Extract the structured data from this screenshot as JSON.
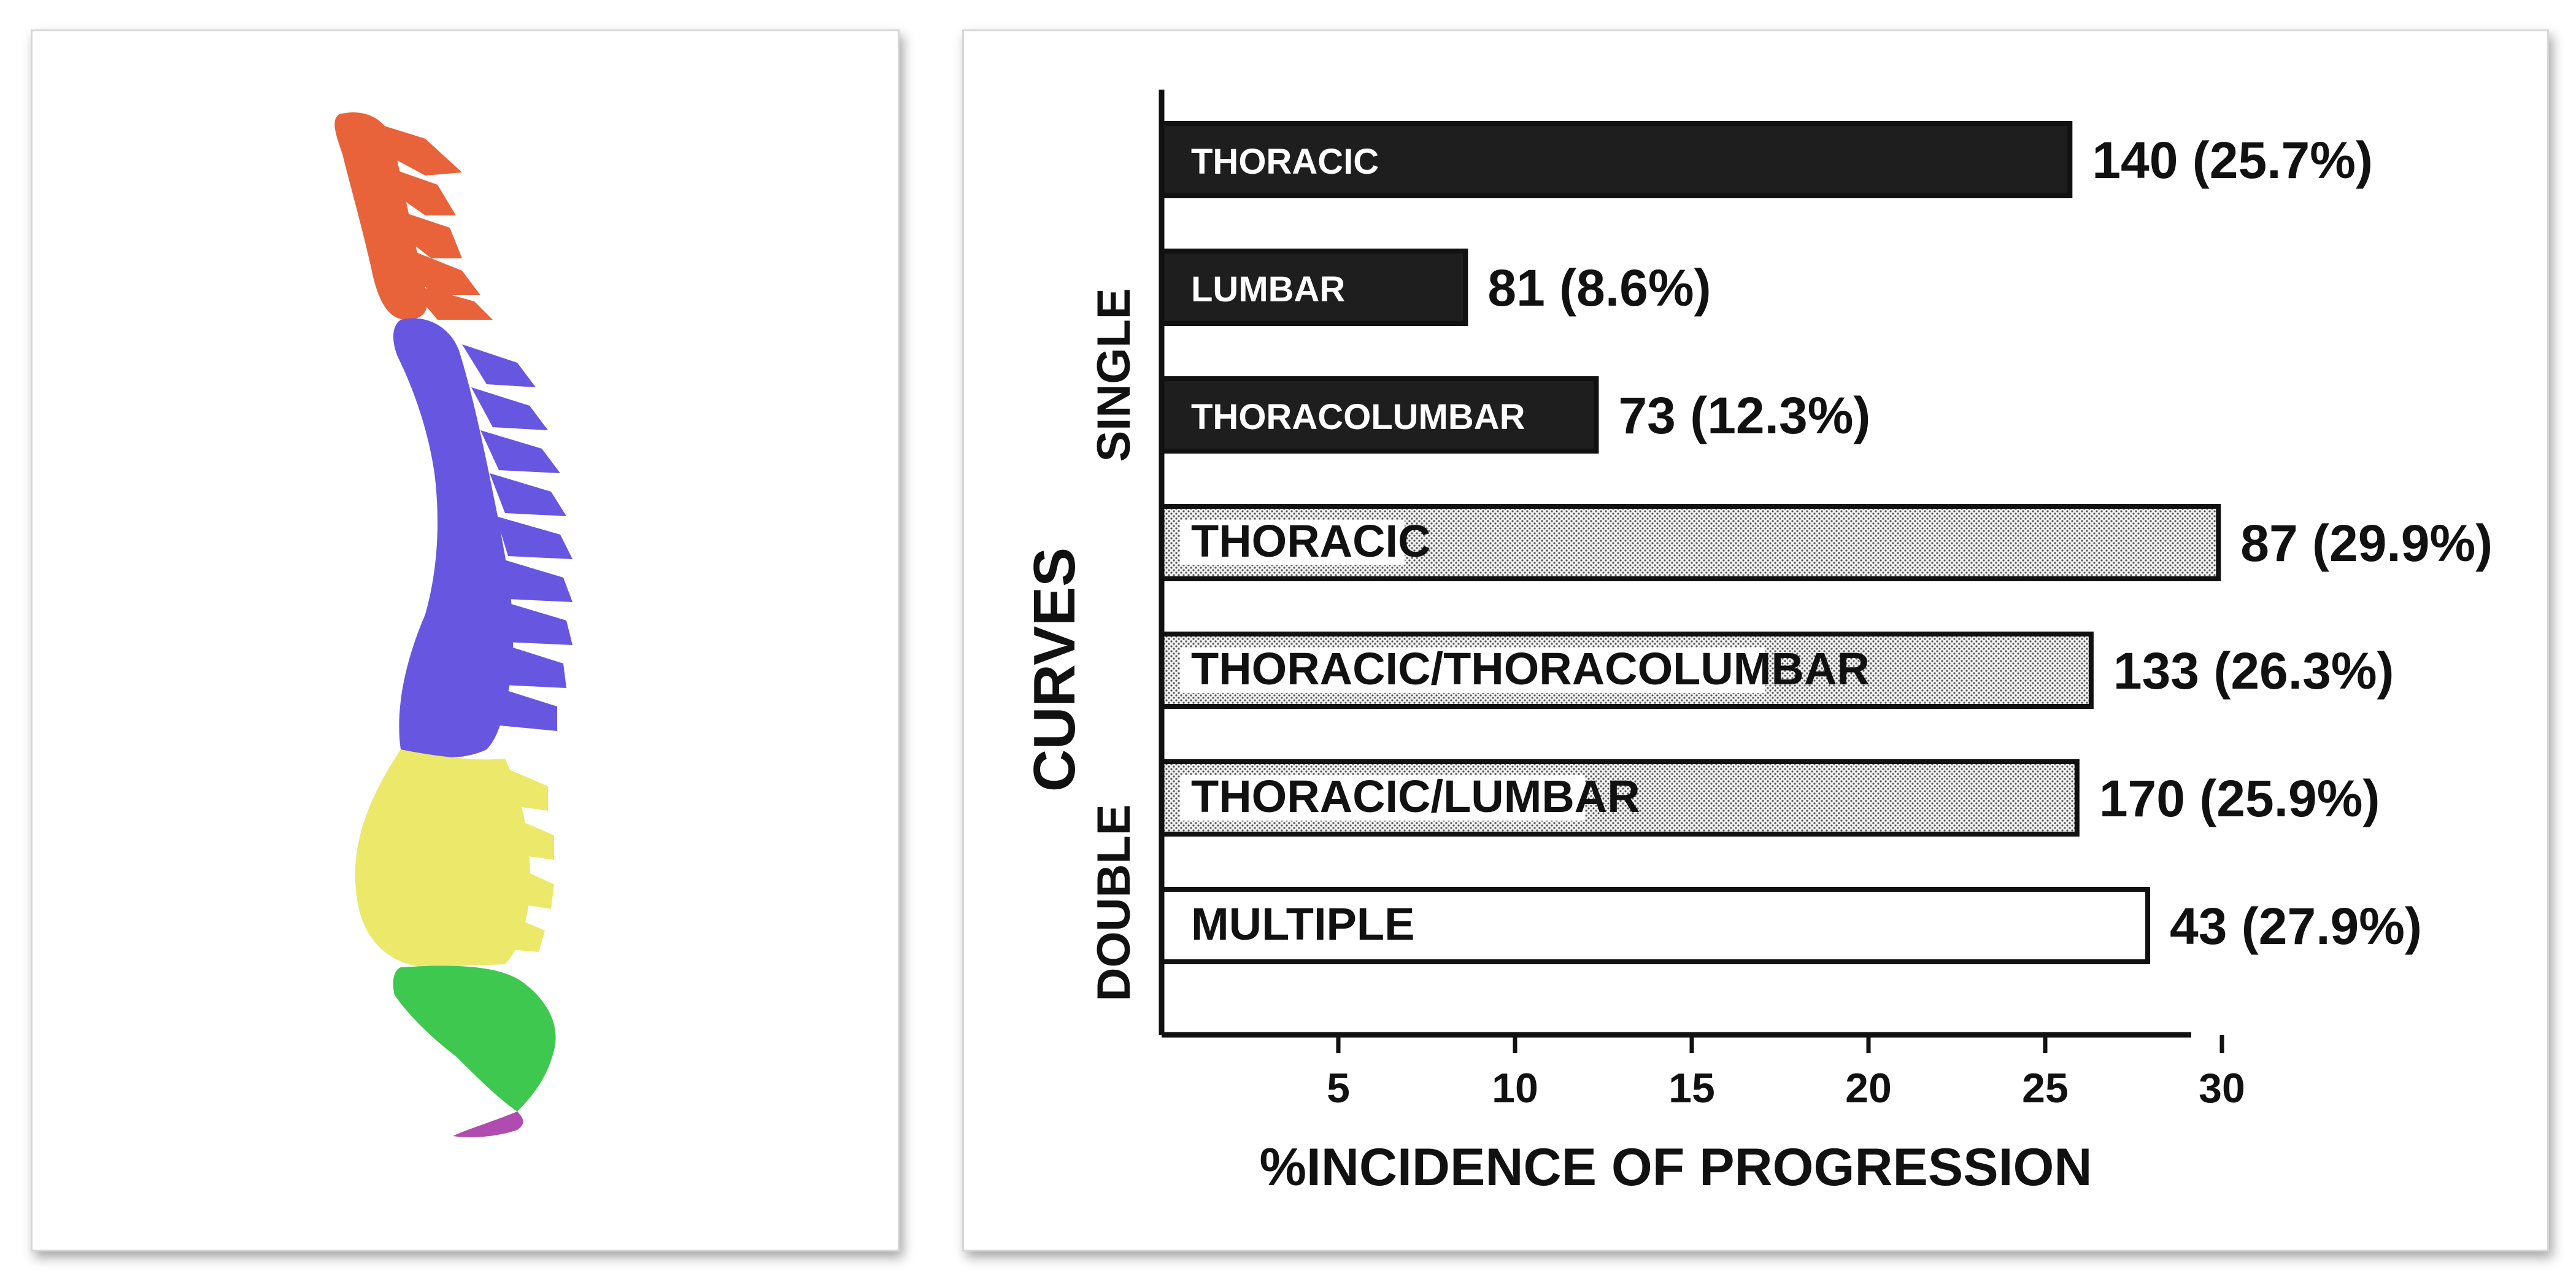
{
  "colors": {
    "cervical": "#e8633a",
    "thoracic": "#6656e0",
    "lumbar": "#ece869",
    "sacrum": "#3fc850",
    "coccyx": "#b04cb0",
    "single_bar": "#1e1e1e",
    "double_bar_pattern": "dotted gray",
    "multiple_bar": "#ffffff"
  },
  "chart_data": {
    "type": "bar",
    "orientation": "horizontal",
    "xlabel": "%INCIDENCE OF PROGRESSION",
    "ylabel": "CURVES",
    "xlim": [
      0,
      30
    ],
    "xticks": [
      5,
      10,
      15,
      20,
      25,
      30
    ],
    "groups": [
      {
        "name": "SINGLE",
        "categories": [
          0,
          1,
          2
        ]
      },
      {
        "name": "DOUBLE",
        "categories": [
          3,
          4,
          5,
          6
        ]
      }
    ],
    "categories": [
      "THORACIC",
      "LUMBAR",
      "THORACOLUMBAR",
      "THORACIC",
      "THORACIC/THORACOLUMBAR",
      "THORACIC/LUMBAR",
      "MULTIPLE"
    ],
    "values": [
      25.7,
      8.6,
      12.3,
      29.9,
      26.3,
      25.9,
      27.9
    ],
    "value_labels": [
      "140 (25.7%)",
      "81 (8.6%)",
      "73 (12.3%)",
      "87 (29.9%)",
      "133 (26.3%)",
      "170 (25.9%)",
      "43 (27.9%)"
    ],
    "bar_styles": [
      "solid-dark",
      "solid-dark",
      "solid-dark",
      "dotted",
      "dotted",
      "dotted",
      "outline"
    ],
    "grid": false,
    "legend": "none"
  }
}
